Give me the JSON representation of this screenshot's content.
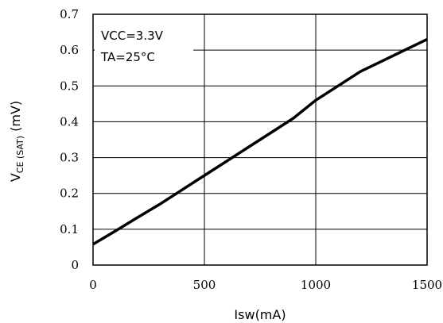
{
  "chart_data": {
    "type": "line",
    "x": [
      0,
      100,
      200,
      300,
      400,
      500,
      600,
      700,
      800,
      900,
      1000,
      1100,
      1200,
      1300,
      1400,
      1500
    ],
    "series": [
      {
        "values": [
          0.058,
          0.095,
          0.133,
          0.17,
          0.21,
          0.25,
          0.29,
          0.33,
          0.37,
          0.41,
          0.46,
          0.5,
          0.54,
          0.57,
          0.6,
          0.63
        ]
      }
    ],
    "xlabel": "Isw(mA)",
    "ylabel": {
      "main": "V",
      "subscript": "CE (SAT)",
      "suffix": " (mV)"
    },
    "xlim": [
      0,
      1500
    ],
    "ylim": [
      0,
      0.7
    ],
    "x_ticks": [
      "0",
      "500",
      "1000",
      "1500"
    ],
    "y_ticks": [
      "0",
      "0.1",
      "0.2",
      "0.3",
      "0.4",
      "0.5",
      "0.6",
      "0.7"
    ],
    "grid": true,
    "annotations": [
      "VCC=3.3V",
      "TA=25°C"
    ],
    "legend_placement": "top-left"
  }
}
